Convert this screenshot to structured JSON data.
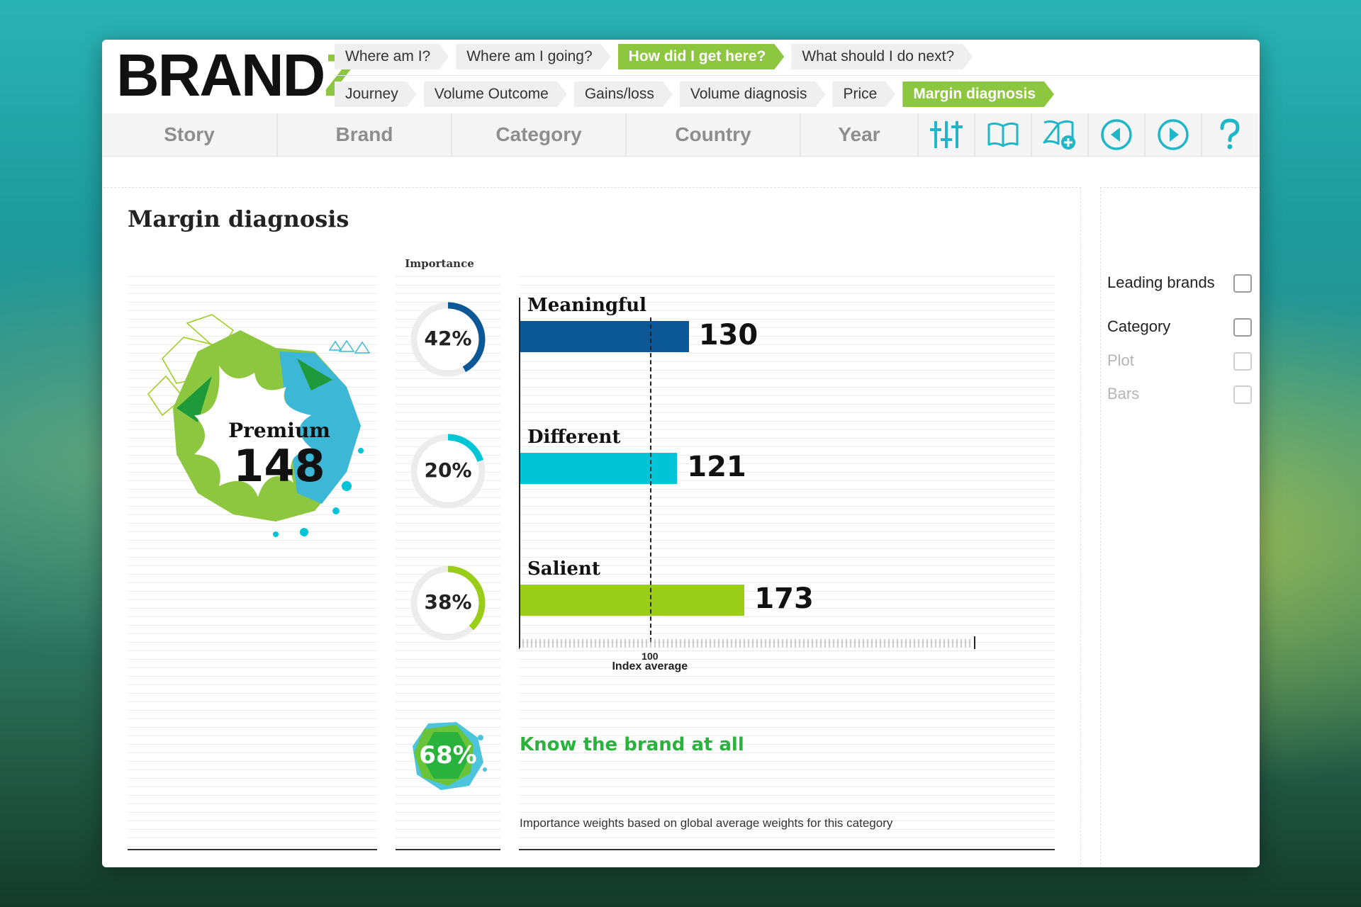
{
  "logo": {
    "text_main": "BRAND",
    "text_accent": "Z"
  },
  "breadcrumbs_top": [
    {
      "label": "Where am I?",
      "active": false
    },
    {
      "label": "Where am I going?",
      "active": false
    },
    {
      "label": "How did I get here?",
      "active": true
    },
    {
      "label": "What should I do next?",
      "active": false
    }
  ],
  "breadcrumbs_sub": [
    {
      "label": "Journey",
      "active": false
    },
    {
      "label": "Volume Outcome",
      "active": false
    },
    {
      "label": "Gains/loss",
      "active": false
    },
    {
      "label": "Volume diagnosis",
      "active": false
    },
    {
      "label": "Price",
      "active": false
    },
    {
      "label": "Margin diagnosis",
      "active": true
    }
  ],
  "nav_tabs": [
    "Story",
    "Brand",
    "Category",
    "Country",
    "Year"
  ],
  "nav_icons": [
    "sliders-icon",
    "book-icon",
    "book-add-icon",
    "previous-icon",
    "next-icon",
    "help-icon"
  ],
  "colors": {
    "accent_green": "#8dc63f",
    "navy": "#0c5896",
    "cyan": "#00c5d6",
    "lime": "#9acd17",
    "icon_teal": "#1fb6c8",
    "know_green": "#2ab33c"
  },
  "main": {
    "title": "Margin diagnosis",
    "premium": {
      "label": "Premium",
      "value": "148"
    },
    "importance_header": "Importance",
    "know_brand": {
      "percent": "68%",
      "text": "Know the brand at all"
    },
    "footnote": "Importance weights based on global average weights for this category"
  },
  "chart_data": {
    "type": "bar",
    "categories": [
      "Meaningful",
      "Different",
      "Salient"
    ],
    "values": [
      130,
      121,
      173
    ],
    "value_labels": [
      "130",
      "121",
      "173"
    ],
    "importance": [
      42,
      20,
      38
    ],
    "importance_labels": [
      "42%",
      "20%",
      "38%"
    ],
    "colors": [
      "#0c5896",
      "#00c5d6",
      "#9acd17"
    ],
    "reference": {
      "value": 100,
      "tick_label": "100",
      "label": "Index average"
    },
    "xlim": [
      0,
      350
    ]
  },
  "side": {
    "options": [
      {
        "label": "Leading brands",
        "enabled": true,
        "checked": false
      },
      {
        "label": "Category",
        "enabled": true,
        "checked": false
      },
      {
        "label": "Plot",
        "enabled": false,
        "checked": false
      },
      {
        "label": "Bars",
        "enabled": false,
        "checked": false
      }
    ],
    "enabled_text_color": "#222222",
    "disabled_text_color": "#b5b5b5"
  }
}
